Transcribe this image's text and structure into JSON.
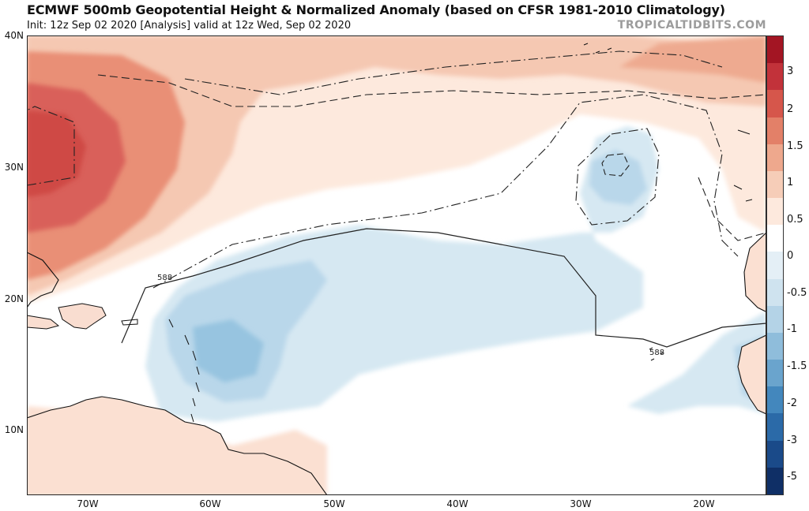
{
  "header": {
    "title": "ECMWF 500mb Geopotential Height & Normalized Anomaly (based on CFSR 1981-2010 Climatology)",
    "subtitle": "Init: 12z Sep 02 2020   [Analysis]   valid at 12z Wed, Sep 02 2020",
    "brand": "TROPICALTIDBITS.COM"
  },
  "map": {
    "lat_labels": [
      "40N",
      "30N",
      "20N",
      "10N"
    ],
    "lon_labels": [
      "70W",
      "60W",
      "50W",
      "40W",
      "30W",
      "20W"
    ],
    "contour_labels": [
      "588",
      "588"
    ]
  },
  "colorbar": {
    "labels": [
      "3",
      "2",
      "1.5",
      "1",
      "0.5",
      "0",
      "-0.5",
      "-1",
      "-1.5",
      "-2",
      "-3",
      "-5"
    ],
    "colors": [
      "#a31523",
      "#c2323a",
      "#d6564b",
      "#e38068",
      "#eea88d",
      "#f6cdb8",
      "#fde9dd",
      "#ffffff",
      "#e4eff6",
      "#cfe3ef",
      "#b4d3e7",
      "#8fbddb",
      "#6aa4cd",
      "#4387bd",
      "#2b6aa8",
      "#1a4a89",
      "#0f2f66"
    ]
  },
  "colors": {
    "ocean_neutral": "#ffffff",
    "positive_light": "#fde9dd",
    "positive_mid": "#f5c8b2",
    "positive_strong": "#e98f76",
    "positive_max": "#cf4a45",
    "negative_light": "#d6e8f2",
    "negative_mid": "#b9d7ea",
    "negative_strong": "#97c4e0"
  }
}
